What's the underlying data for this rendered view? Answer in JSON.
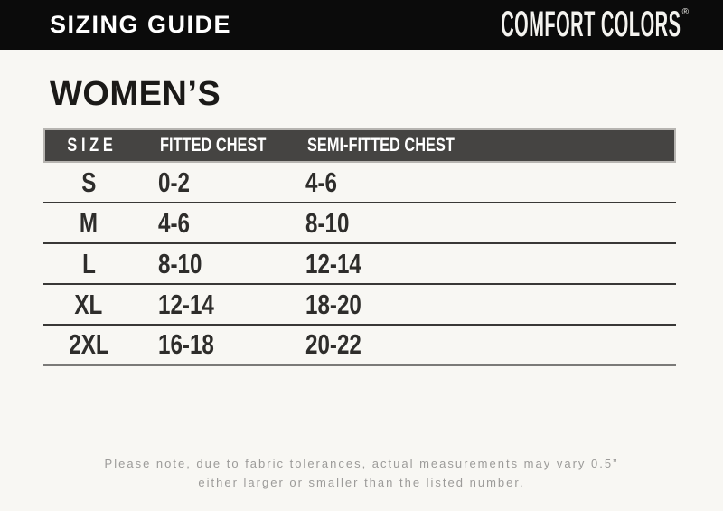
{
  "header": {
    "title": "SIZING GUIDE",
    "brand": "COMFORT COLORS",
    "registered": "®",
    "bar_color": "#0b0b0b",
    "text_color": "#ffffff"
  },
  "section": {
    "title": "WOMEN’S"
  },
  "table": {
    "header_bg": "#454442",
    "columns": [
      "SIZE",
      "FITTED CHEST",
      "SEMI-FITTED CHEST"
    ],
    "rows": [
      {
        "size": "S",
        "fitted": "0-2",
        "semi_fitted": "4-6"
      },
      {
        "size": "M",
        "fitted": "4-6",
        "semi_fitted": "8-10"
      },
      {
        "size": "L",
        "fitted": "8-10",
        "semi_fitted": "12-14"
      },
      {
        "size": "XL",
        "fitted": "12-14",
        "semi_fitted": "18-20"
      },
      {
        "size": "2XL",
        "fitted": "16-18",
        "semi_fitted": "20-22"
      }
    ]
  },
  "footer": {
    "note_line1": "Please note, due to fabric tolerances, actual measurements may vary 0.5”",
    "note_line2": "either larger or smaller than the listed number."
  }
}
